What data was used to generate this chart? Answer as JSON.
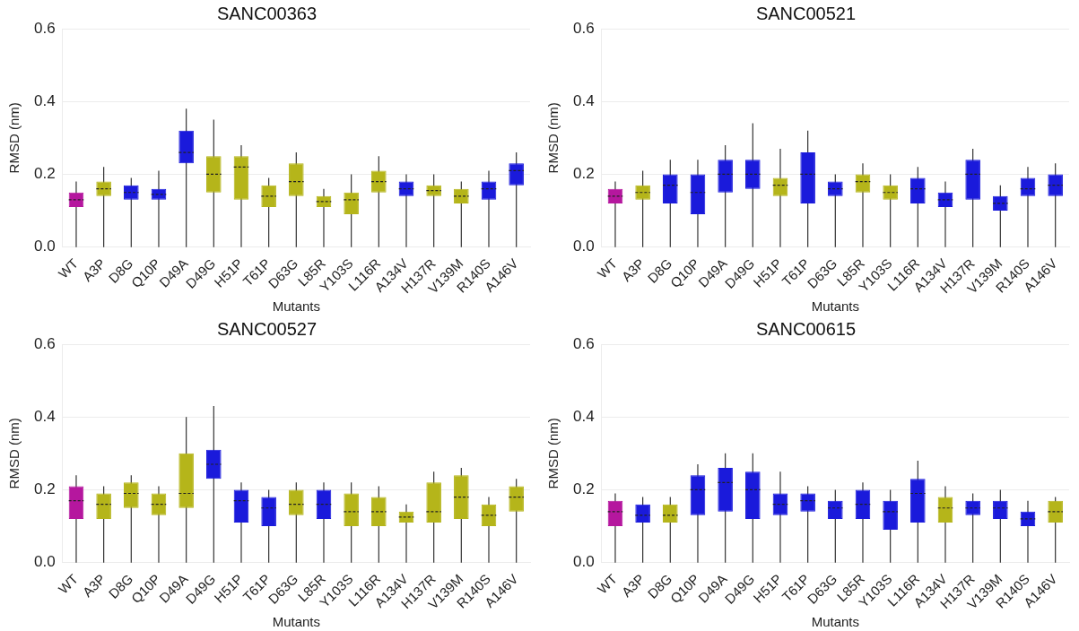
{
  "chart_data": [
    {
      "type": "box",
      "title": "SANC00363",
      "xlabel": "Mutants",
      "ylabel": "RMSD (nm)",
      "categories": [
        "WT",
        "A3P",
        "D8G",
        "Q10P",
        "D49A",
        "D49G",
        "H51P",
        "T61P",
        "D63G",
        "L85R",
        "Y103S",
        "L116R",
        "A134V",
        "H137R",
        "V139M",
        "R140S",
        "A146V"
      ],
      "colors": [
        "#b5179e",
        "#b5b51a",
        "#1a1adb",
        "#1a1adb",
        "#1a1adb",
        "#b5b51a",
        "#b5b51a",
        "#b5b51a",
        "#b5b51a",
        "#b5b51a",
        "#b5b51a",
        "#b5b51a",
        "#1a1adb",
        "#b5b51a",
        "#b5b51a",
        "#1a1adb",
        "#1a1adb"
      ],
      "boxes": [
        {
          "low": 0,
          "q1": 0.11,
          "median": 0.13,
          "q3": 0.15,
          "high": 0.18
        },
        {
          "low": 0,
          "q1": 0.14,
          "median": 0.16,
          "q3": 0.18,
          "high": 0.22
        },
        {
          "low": 0,
          "q1": 0.13,
          "median": 0.15,
          "q3": 0.17,
          "high": 0.19
        },
        {
          "low": 0,
          "q1": 0.13,
          "median": 0.145,
          "q3": 0.16,
          "high": 0.21
        },
        {
          "low": 0,
          "q1": 0.23,
          "median": 0.26,
          "q3": 0.32,
          "high": 0.38
        },
        {
          "low": 0,
          "q1": 0.15,
          "median": 0.2,
          "q3": 0.25,
          "high": 0.35
        },
        {
          "low": 0,
          "q1": 0.13,
          "median": 0.22,
          "q3": 0.25,
          "high": 0.28
        },
        {
          "low": 0,
          "q1": 0.11,
          "median": 0.14,
          "q3": 0.17,
          "high": 0.19
        },
        {
          "low": 0,
          "q1": 0.14,
          "median": 0.18,
          "q3": 0.23,
          "high": 0.26
        },
        {
          "low": 0,
          "q1": 0.11,
          "median": 0.125,
          "q3": 0.14,
          "high": 0.16
        },
        {
          "low": 0,
          "q1": 0.09,
          "median": 0.13,
          "q3": 0.15,
          "high": 0.2
        },
        {
          "low": 0,
          "q1": 0.15,
          "median": 0.18,
          "q3": 0.21,
          "high": 0.25
        },
        {
          "low": 0,
          "q1": 0.14,
          "median": 0.16,
          "q3": 0.18,
          "high": 0.2
        },
        {
          "low": 0,
          "q1": 0.14,
          "median": 0.155,
          "q3": 0.17,
          "high": 0.2
        },
        {
          "low": 0,
          "q1": 0.12,
          "median": 0.14,
          "q3": 0.16,
          "high": 0.18
        },
        {
          "low": 0,
          "q1": 0.13,
          "median": 0.16,
          "q3": 0.18,
          "high": 0.21
        },
        {
          "low": 0,
          "q1": 0.17,
          "median": 0.21,
          "q3": 0.23,
          "high": 0.26
        }
      ],
      "ylim": [
        0,
        0.6
      ],
      "yticks": [
        {
          "value": 0,
          "label": "0.0"
        },
        {
          "value": 0.2,
          "label": "0.2"
        },
        {
          "value": 0.4,
          "label": "0.4"
        },
        {
          "value": 0.6,
          "label": "0.6"
        }
      ],
      "grid": "y"
    },
    {
      "type": "box",
      "title": "SANC00521",
      "xlabel": "Mutants",
      "ylabel": "RMSD (nm)",
      "categories": [
        "WT",
        "A3P",
        "D8G",
        "Q10P",
        "D49A",
        "D49G",
        "H51P",
        "T61P",
        "D63G",
        "L85R",
        "Y103S",
        "L116R",
        "A134V",
        "H137R",
        "V139M",
        "R140S",
        "A146V"
      ],
      "colors": [
        "#b5179e",
        "#b5b51a",
        "#1a1adb",
        "#1a1adb",
        "#1a1adb",
        "#1a1adb",
        "#b5b51a",
        "#1a1adb",
        "#1a1adb",
        "#b5b51a",
        "#b5b51a",
        "#1a1adb",
        "#1a1adb",
        "#1a1adb",
        "#1a1adb",
        "#1a1adb",
        "#1a1adb"
      ],
      "boxes": [
        {
          "low": 0,
          "q1": 0.12,
          "median": 0.14,
          "q3": 0.16,
          "high": 0.18
        },
        {
          "low": 0,
          "q1": 0.13,
          "median": 0.15,
          "q3": 0.17,
          "high": 0.21
        },
        {
          "low": 0,
          "q1": 0.12,
          "median": 0.17,
          "q3": 0.2,
          "high": 0.24
        },
        {
          "low": 0,
          "q1": 0.09,
          "median": 0.15,
          "q3": 0.2,
          "high": 0.24
        },
        {
          "low": 0,
          "q1": 0.15,
          "median": 0.2,
          "q3": 0.24,
          "high": 0.28
        },
        {
          "low": 0,
          "q1": 0.16,
          "median": 0.2,
          "q3": 0.24,
          "high": 0.34
        },
        {
          "low": 0,
          "q1": 0.14,
          "median": 0.17,
          "q3": 0.19,
          "high": 0.27
        },
        {
          "low": 0,
          "q1": 0.12,
          "median": 0.2,
          "q3": 0.26,
          "high": 0.32
        },
        {
          "low": 0,
          "q1": 0.14,
          "median": 0.16,
          "q3": 0.18,
          "high": 0.2
        },
        {
          "low": 0,
          "q1": 0.15,
          "median": 0.18,
          "q3": 0.2,
          "high": 0.23
        },
        {
          "low": 0,
          "q1": 0.13,
          "median": 0.15,
          "q3": 0.17,
          "high": 0.2
        },
        {
          "low": 0,
          "q1": 0.12,
          "median": 0.16,
          "q3": 0.19,
          "high": 0.22
        },
        {
          "low": 0,
          "q1": 0.11,
          "median": 0.13,
          "q3": 0.15,
          "high": 0.18
        },
        {
          "low": 0,
          "q1": 0.13,
          "median": 0.2,
          "q3": 0.24,
          "high": 0.27
        },
        {
          "low": 0,
          "q1": 0.1,
          "median": 0.12,
          "q3": 0.14,
          "high": 0.17
        },
        {
          "low": 0,
          "q1": 0.14,
          "median": 0.16,
          "q3": 0.19,
          "high": 0.22
        },
        {
          "low": 0,
          "q1": 0.14,
          "median": 0.17,
          "q3": 0.2,
          "high": 0.23
        }
      ],
      "ylim": [
        0,
        0.6
      ],
      "yticks": [
        {
          "value": 0,
          "label": "0.0"
        },
        {
          "value": 0.2,
          "label": "0.2"
        },
        {
          "value": 0.4,
          "label": "0.4"
        },
        {
          "value": 0.6,
          "label": "0.6"
        }
      ],
      "grid": "y"
    },
    {
      "type": "box",
      "title": "SANC00527",
      "xlabel": "Mutants",
      "ylabel": "RMSD (nm)",
      "categories": [
        "WT",
        "A3P",
        "D8G",
        "Q10P",
        "D49A",
        "D49G",
        "H51P",
        "T61P",
        "D63G",
        "L85R",
        "Y103S",
        "L116R",
        "A134V",
        "H137R",
        "V139M",
        "R140S",
        "A146V"
      ],
      "colors": [
        "#b5179e",
        "#b5b51a",
        "#b5b51a",
        "#b5b51a",
        "#b5b51a",
        "#1a1adb",
        "#1a1adb",
        "#1a1adb",
        "#b5b51a",
        "#1a1adb",
        "#b5b51a",
        "#b5b51a",
        "#b5b51a",
        "#b5b51a",
        "#b5b51a",
        "#b5b51a",
        "#b5b51a"
      ],
      "boxes": [
        {
          "low": 0,
          "q1": 0.12,
          "median": 0.17,
          "q3": 0.21,
          "high": 0.24
        },
        {
          "low": 0,
          "q1": 0.12,
          "median": 0.16,
          "q3": 0.19,
          "high": 0.21
        },
        {
          "low": 0,
          "q1": 0.15,
          "median": 0.19,
          "q3": 0.22,
          "high": 0.24
        },
        {
          "low": 0,
          "q1": 0.13,
          "median": 0.16,
          "q3": 0.19,
          "high": 0.21
        },
        {
          "low": 0,
          "q1": 0.15,
          "median": 0.19,
          "q3": 0.3,
          "high": 0.4
        },
        {
          "low": 0,
          "q1": 0.23,
          "median": 0.27,
          "q3": 0.31,
          "high": 0.43
        },
        {
          "low": 0,
          "q1": 0.11,
          "median": 0.17,
          "q3": 0.2,
          "high": 0.22
        },
        {
          "low": 0,
          "q1": 0.1,
          "median": 0.15,
          "q3": 0.18,
          "high": 0.2
        },
        {
          "low": 0,
          "q1": 0.13,
          "median": 0.16,
          "q3": 0.2,
          "high": 0.22
        },
        {
          "low": 0,
          "q1": 0.12,
          "median": 0.16,
          "q3": 0.2,
          "high": 0.22
        },
        {
          "low": 0,
          "q1": 0.1,
          "median": 0.14,
          "q3": 0.19,
          "high": 0.22
        },
        {
          "low": 0,
          "q1": 0.1,
          "median": 0.14,
          "q3": 0.18,
          "high": 0.21
        },
        {
          "low": 0,
          "q1": 0.11,
          "median": 0.125,
          "q3": 0.14,
          "high": 0.16
        },
        {
          "low": 0,
          "q1": 0.11,
          "median": 0.14,
          "q3": 0.22,
          "high": 0.25
        },
        {
          "low": 0,
          "q1": 0.12,
          "median": 0.18,
          "q3": 0.24,
          "high": 0.26
        },
        {
          "low": 0,
          "q1": 0.1,
          "median": 0.13,
          "q3": 0.16,
          "high": 0.18
        },
        {
          "low": 0,
          "q1": 0.14,
          "median": 0.18,
          "q3": 0.21,
          "high": 0.23
        }
      ],
      "ylim": [
        0,
        0.6
      ],
      "yticks": [
        {
          "value": 0,
          "label": "0.0"
        },
        {
          "value": 0.2,
          "label": "0.2"
        },
        {
          "value": 0.4,
          "label": "0.4"
        },
        {
          "value": 0.6,
          "label": "0.6"
        }
      ],
      "grid": "y"
    },
    {
      "type": "box",
      "title": "SANC00615",
      "xlabel": "Mutants",
      "ylabel": "RMSD (nm)",
      "categories": [
        "WT",
        "A3P",
        "D8G",
        "Q10P",
        "D49A",
        "D49G",
        "H51P",
        "T61P",
        "D63G",
        "L85R",
        "Y103S",
        "L116R",
        "A134V",
        "H137R",
        "V139M",
        "R140S",
        "A146V"
      ],
      "colors": [
        "#b5179e",
        "#1a1adb",
        "#b5b51a",
        "#1a1adb",
        "#1a1adb",
        "#1a1adb",
        "#1a1adb",
        "#1a1adb",
        "#1a1adb",
        "#1a1adb",
        "#1a1adb",
        "#1a1adb",
        "#b5b51a",
        "#1a1adb",
        "#1a1adb",
        "#1a1adb",
        "#b5b51a"
      ],
      "boxes": [
        {
          "low": 0,
          "q1": 0.1,
          "median": 0.14,
          "q3": 0.17,
          "high": 0.19
        },
        {
          "low": 0,
          "q1": 0.11,
          "median": 0.13,
          "q3": 0.16,
          "high": 0.18
        },
        {
          "low": 0,
          "q1": 0.11,
          "median": 0.13,
          "q3": 0.16,
          "high": 0.18
        },
        {
          "low": 0,
          "q1": 0.13,
          "median": 0.2,
          "q3": 0.24,
          "high": 0.27
        },
        {
          "low": 0,
          "q1": 0.14,
          "median": 0.22,
          "q3": 0.26,
          "high": 0.3
        },
        {
          "low": 0,
          "q1": 0.12,
          "median": 0.2,
          "q3": 0.25,
          "high": 0.3
        },
        {
          "low": 0,
          "q1": 0.13,
          "median": 0.16,
          "q3": 0.19,
          "high": 0.25
        },
        {
          "low": 0,
          "q1": 0.14,
          "median": 0.17,
          "q3": 0.19,
          "high": 0.21
        },
        {
          "low": 0,
          "q1": 0.12,
          "median": 0.15,
          "q3": 0.17,
          "high": 0.2
        },
        {
          "low": 0,
          "q1": 0.12,
          "median": 0.16,
          "q3": 0.2,
          "high": 0.22
        },
        {
          "low": 0,
          "q1": 0.09,
          "median": 0.14,
          "q3": 0.17,
          "high": 0.2
        },
        {
          "low": 0,
          "q1": 0.11,
          "median": 0.19,
          "q3": 0.23,
          "high": 0.28
        },
        {
          "low": 0,
          "q1": 0.11,
          "median": 0.15,
          "q3": 0.18,
          "high": 0.21
        },
        {
          "low": 0,
          "q1": 0.13,
          "median": 0.15,
          "q3": 0.17,
          "high": 0.19
        },
        {
          "low": 0,
          "q1": 0.12,
          "median": 0.15,
          "q3": 0.17,
          "high": 0.2
        },
        {
          "low": 0,
          "q1": 0.1,
          "median": 0.12,
          "q3": 0.14,
          "high": 0.17
        },
        {
          "low": 0,
          "q1": 0.11,
          "median": 0.14,
          "q3": 0.17,
          "high": 0.18
        }
      ],
      "ylim": [
        0,
        0.6
      ],
      "yticks": [
        {
          "value": 0,
          "label": "0.0"
        },
        {
          "value": 0.2,
          "label": "0.2"
        },
        {
          "value": 0.4,
          "label": "0.4"
        },
        {
          "value": 0.6,
          "label": "0.6"
        }
      ],
      "grid": "y"
    }
  ]
}
